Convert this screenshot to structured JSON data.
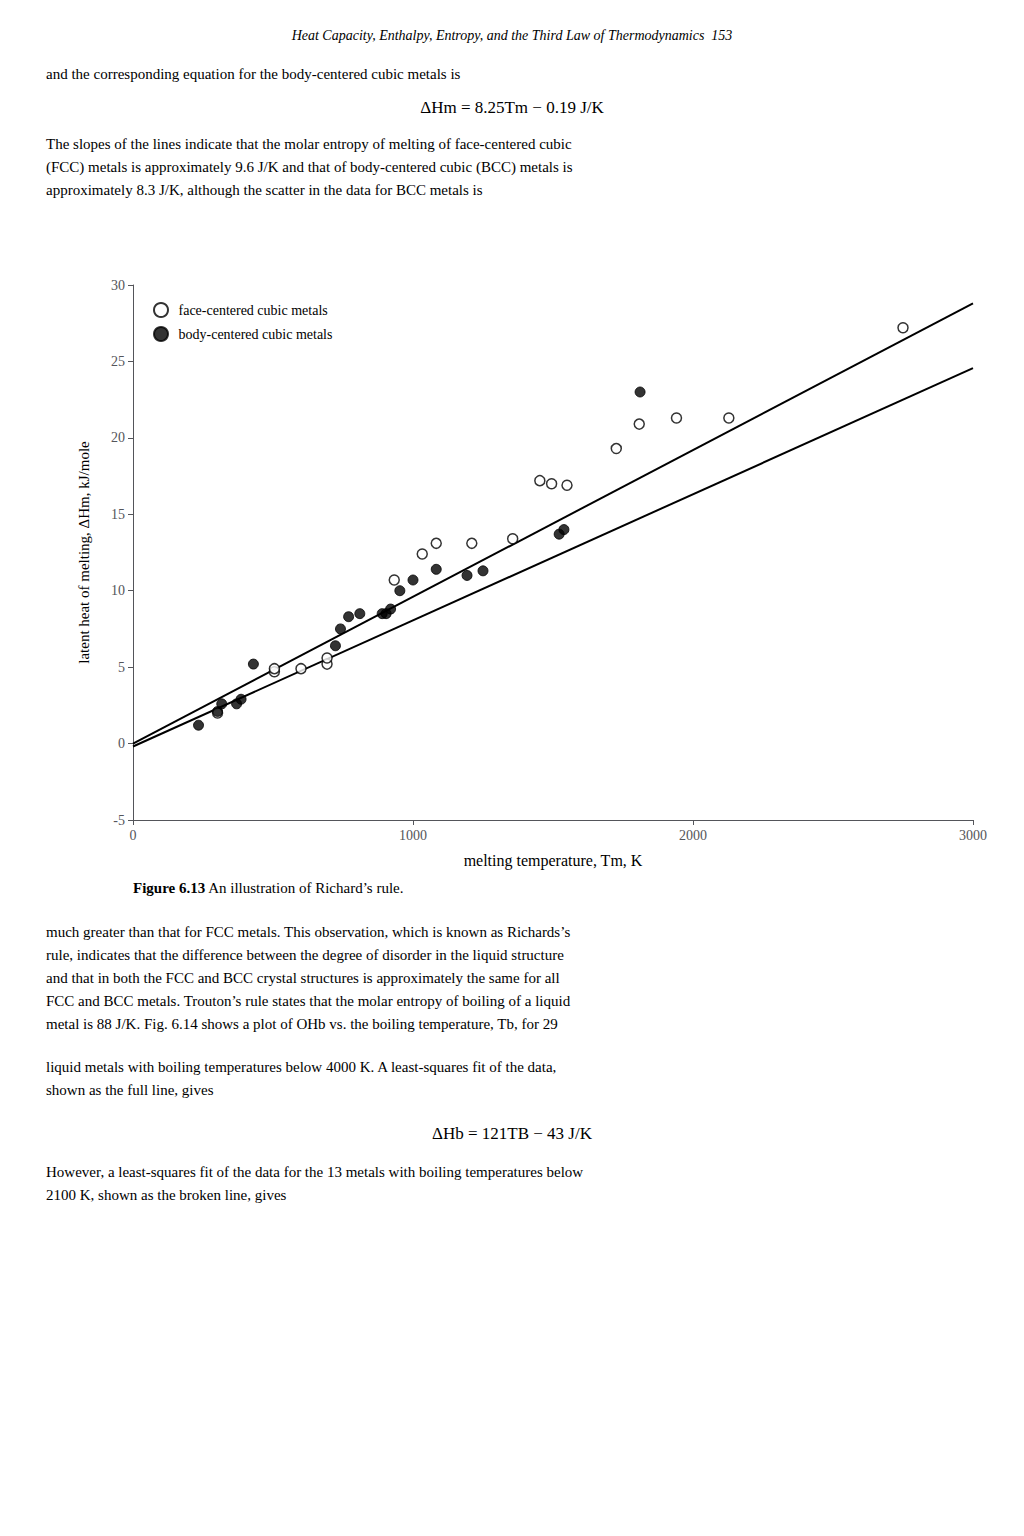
{
  "chart_data": {
    "type": "scatter",
    "header": "Heat Capacity, Enthalpy, Entropy, and the Third Law of Thermodynamics 153",
    "annotations": [
      "and the corresponding equation for the body-centered cubic metals is",
      "ΔHm = 8.25Tm − 0.19 J/K",
      "The slopes of the lines indicate that the molar entropy of melting of face-centered cubic\n(FCC) metals is approximately 9.6 J/K and that of body-centered cubic (BCC) metals is\napproximately 8.3 J/K, although the scatter in the data for BCC metals is",
      "much greater than that for FCC metals. This observation, which is known as Richards’s\nrule, indicates that the difference between the degree of disorder in the liquid structure\nand that in both the FCC and BCC crystal structures is approximately the same for all\nFCC and BCC metals. Trouton’s rule states that the molar entropy of boiling of a liquid\nmetal is 88 J/K. Fig. 6.14 shows a plot of OHb vs. the boiling temperature, Tb, for 29",
      "liquid metals with boiling temperatures below 4000 K. A least-squares fit of the data,\nshown as the full line, gives",
      "ΔHb = 121TB − 43 J/K",
      "However, a least-squares fit of the data for the 13 metals with boiling temperatures below\n2100 K, shown as the broken line, gives"
    ],
    "caption_label": "Figure 6.13",
    "caption": "An illustration of Richard’s rule.",
    "x_label": "melting temperature, Tm, K",
    "y_label": "latent heat of melting, ΔHm, kJ/mole",
    "series": [
      {
        "name": "face-centered cubic metals",
        "type": "scatter",
        "marker": "open_circle",
        "color": "#000000",
        "x": [
          302,
          505,
          505,
          600,
          693,
          693,
          933,
          1033,
          1083,
          1210,
          1356,
          1453,
          1495,
          1550,
          1726,
          1808,
          1941,
          2128,
          2750
        ],
        "values": [
          2.0,
          4.7,
          4.9,
          4.9,
          5.2,
          5.6,
          10.7,
          12.4,
          13.1,
          13.1,
          13.4,
          17.2,
          17.0,
          16.9,
          19.3,
          20.9,
          21.3,
          21.3,
          27.2
        ]
      },
      {
        "name": "body-centered cubic metals",
        "type": "scatter",
        "marker": "circle",
        "color": "#000000",
        "x": [
          234,
          302,
          317,
          370,
          386,
          430,
          723,
          741,
          770,
          810,
          890,
          904,
          920,
          953,
          1000,
          1083,
          1193,
          1250,
          1522,
          1539,
          1811
        ],
        "values": [
          1.2,
          2.1,
          2.6,
          2.6,
          2.9,
          5.2,
          6.4,
          7.5,
          8.3,
          8.5,
          8.5,
          8.5,
          8.8,
          10.0,
          10.7,
          11.4,
          11.0,
          11.3,
          13.7,
          14.0,
          23.0
        ]
      },
      {
        "type": "line",
        "line_style": "solid",
        "color": "#000000",
        "x": [
          0,
          3000
        ],
        "values": [
          0.0,
          28.8
        ]
      },
      {
        "type": "line",
        "line_style": "solid",
        "color": "#000000",
        "x": [
          0,
          3000
        ],
        "values": [
          -0.19,
          24.56
        ]
      }
    ],
    "xlim": [
      0,
      3000
    ],
    "ylim": [
      -5,
      30
    ],
    "xticks": [
      0,
      1000,
      2000,
      3000
    ],
    "yticks": [
      -5,
      0,
      5,
      10,
      15,
      20,
      25,
      30
    ],
    "grid": false,
    "legend": "upper left"
  }
}
